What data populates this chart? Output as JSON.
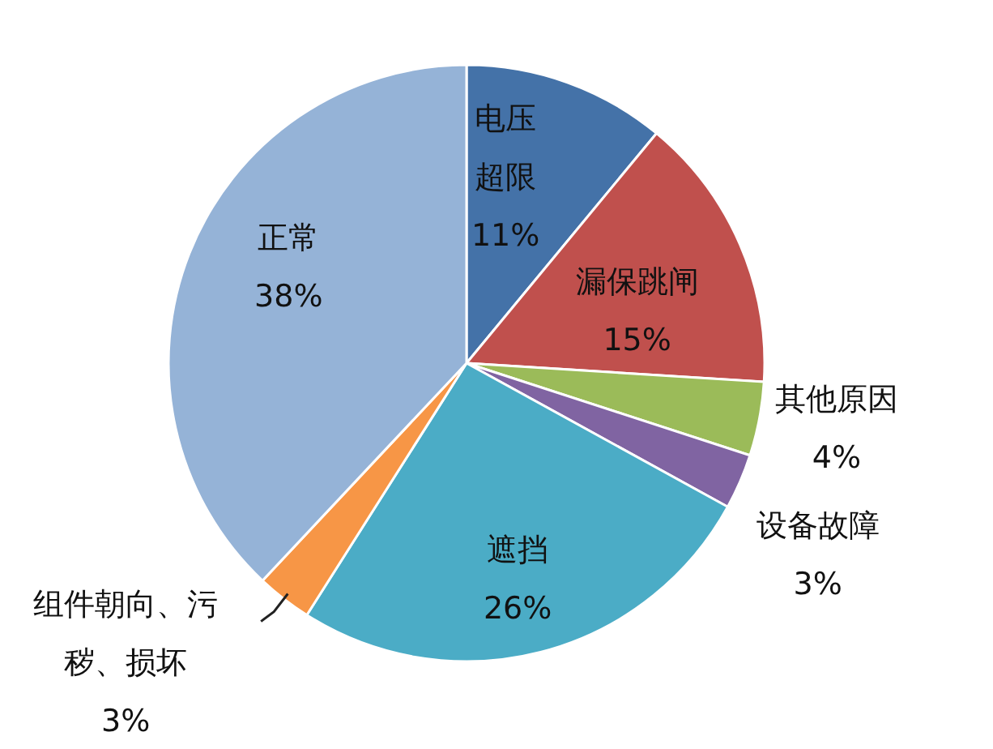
{
  "chart_data": {
    "type": "pie",
    "categories": [
      "电压超限",
      "漏保跳闸",
      "其他原因",
      "设备故障",
      "遮挡",
      "组件朝向、污秽、损坏",
      "正常"
    ],
    "values": [
      11,
      15,
      4,
      3,
      26,
      3,
      38
    ],
    "colors": [
      "#4472a8",
      "#c0504d",
      "#9bbb59",
      "#8064a2",
      "#4bacc6",
      "#f79646",
      "#95b3d7"
    ],
    "value_labels": [
      "11%",
      "15%",
      "4%",
      "3%",
      "26%",
      "3%",
      "38%"
    ]
  }
}
